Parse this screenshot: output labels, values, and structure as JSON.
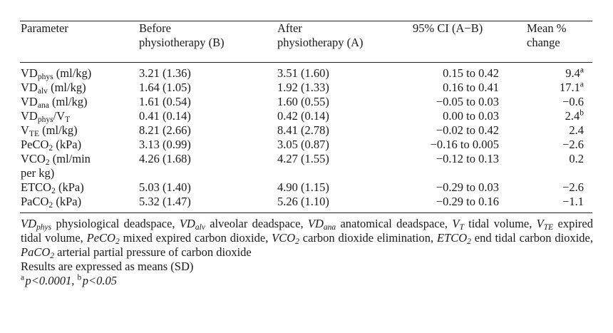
{
  "table": {
    "headers": {
      "parameter": "Parameter",
      "before_line1": "Before",
      "before_line2": "physiotherapy (B)",
      "after_line1": "After",
      "after_line2": "physiotherapy (A)",
      "ci": "95% CI (A−B)",
      "mean_line1": "Mean %",
      "mean_line2": "change"
    },
    "rows": [
      {
        "param_base": "VD",
        "param_sub": "phys",
        "param_tail": " (ml/kg)",
        "before": "3.21 (1.36)",
        "after": "3.51 (1.60)",
        "ci": "0.15 to 0.42",
        "change": "9.4",
        "change_sup": "a"
      },
      {
        "param_base": "VD",
        "param_sub": "alv",
        "param_tail": " (ml/kg)",
        "before": "1.64 (1.05)",
        "after": "1.92 (1.33)",
        "ci": "0.16 to 0.41",
        "change": "17.1",
        "change_sup": "a"
      },
      {
        "param_base": "VD",
        "param_sub": "ana",
        "param_tail": " (ml/kg)",
        "before": "1.61 (0.54)",
        "after": "1.60 (0.55)",
        "ci": "−0.05 to 0.03",
        "change": "−0.6",
        "change_sup": ""
      },
      {
        "param_base": "VD",
        "param_sub": "phys",
        "param_tail": "/V",
        "param_sub2": "T",
        "before": "0.41 (0.14)",
        "after": "0.42 (0.14)",
        "ci": "0.00 to 0.03",
        "change": "2.4",
        "change_sup": "b"
      },
      {
        "param_base": "V",
        "param_sub": "TE",
        "param_tail": " (ml/kg)",
        "before": "8.21 (2.66)",
        "after": "8.41 (2.78)",
        "ci": "−0.02 to 0.42",
        "change": "2.4",
        "change_sup": ""
      },
      {
        "param_base": "PeCO",
        "param_sub": "2",
        "param_tail": " (kPa)",
        "before": "3.13 (0.99)",
        "after": "3.05 (0.87)",
        "ci": "−0.16 to 0.005",
        "change": "−2.6",
        "change_sup": ""
      },
      {
        "param_base": "VCO",
        "param_sub": "2",
        "param_tail": " (ml/min",
        "param_line2": "per kg)",
        "before": "4.26 (1.68)",
        "after": "4.27 (1.55)",
        "ci": "−0.12 to 0.13",
        "change": "0.2",
        "change_sup": ""
      },
      {
        "param_base": "ETCO",
        "param_sub": "2",
        "param_tail": " (kPa)",
        "before": "5.03 (1.40)",
        "after": "4.90 (1.15)",
        "ci": "−0.29 to 0.03",
        "change": "−2.6",
        "change_sup": ""
      },
      {
        "param_base": "PaCO",
        "param_sub": "2",
        "param_tail": " (kPa)",
        "before": "5.32 (1.47)",
        "after": "5.26 (1.10)",
        "ci": "−0.29 to 0.16",
        "change": "−1.1",
        "change_sup": ""
      }
    ]
  },
  "footnotes": {
    "abbreviations": [
      {
        "base": "VD",
        "sub": "phys",
        "text": " physiological deadspace, "
      },
      {
        "base": "VD",
        "sub": "alv",
        "text": " alveolar deadspace, "
      },
      {
        "base": "VD",
        "sub": "ana",
        "text": " anatomical deadspace, "
      },
      {
        "base": "V",
        "sub": "T",
        "text": " tidal volume, "
      },
      {
        "base": "V",
        "sub": "TE",
        "text": " expired tidal volume, "
      },
      {
        "base": "PeCO",
        "sub": "2",
        "text": " mixed expired carbon dioxide, "
      },
      {
        "base": "VCO",
        "sub": "2",
        "text": " carbon dioxide elimination, "
      },
      {
        "base": "ETCO",
        "sub": "2",
        "text": " end tidal carbon dioxide, "
      },
      {
        "base": "PaCO",
        "sub": "2",
        "text": " arterial partial pressure of carbon dioxide"
      }
    ],
    "results_note": "Results are expressed as means (SD)",
    "sig_a_mark": "a",
    "sig_a_text": "p<0.0001, ",
    "sig_b_mark": "b",
    "sig_b_text": "p<0.05"
  }
}
